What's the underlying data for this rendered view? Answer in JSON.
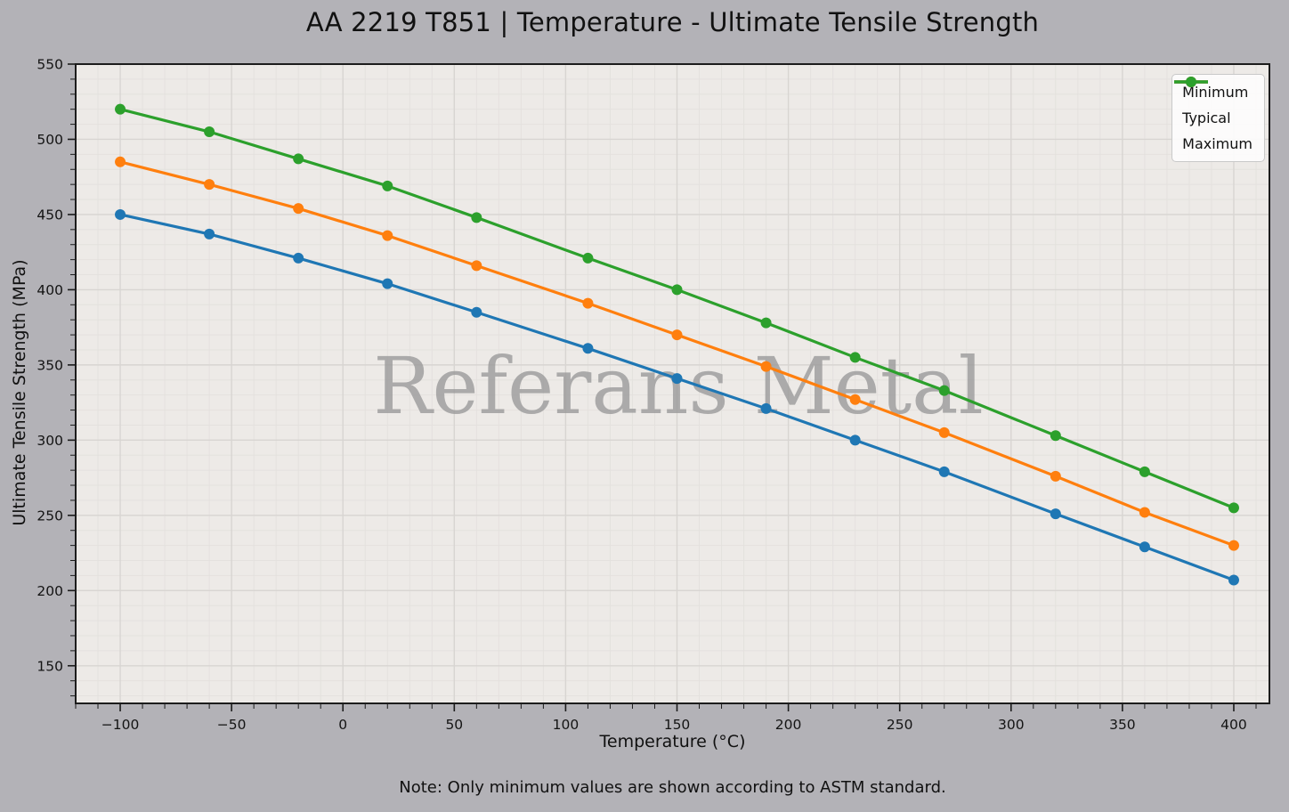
{
  "chart_data": {
    "type": "line",
    "title": "AA 2219 T851 | Temperature - Ultimate Tensile Strength",
    "xlabel": "Temperature (°C)",
    "ylabel": "Ultimate Tensile Strength (MPa)",
    "note": "Note: Only minimum values are shown according to ASTM standard.",
    "watermark": "Referans Metal",
    "x": [
      -100,
      -60,
      -20,
      20,
      60,
      110,
      150,
      190,
      230,
      270,
      320,
      360,
      400
    ],
    "series": [
      {
        "name": "Minimum",
        "color": "#1f77b4",
        "values": [
          450,
          437,
          421,
          404,
          385,
          361,
          341,
          321,
          300,
          279,
          251,
          229,
          207
        ]
      },
      {
        "name": "Typical",
        "color": "#ff7f0e",
        "values": [
          485,
          470,
          454,
          436,
          416,
          391,
          370,
          349,
          327,
          305,
          276,
          252,
          230
        ]
      },
      {
        "name": "Maximum",
        "color": "#2ca02c",
        "values": [
          520,
          505,
          487,
          469,
          448,
          421,
          400,
          378,
          355,
          333,
          303,
          279,
          255
        ]
      }
    ],
    "x_ticks": [
      -100,
      -50,
      0,
      50,
      100,
      150,
      200,
      250,
      300,
      350,
      400
    ],
    "y_ticks": [
      150,
      200,
      250,
      300,
      350,
      400,
      450,
      500,
      550
    ],
    "xlim": [
      -120,
      416
    ],
    "ylim": [
      125,
      550
    ],
    "grid": true,
    "minor_step_x": 10,
    "minor_step_y": 10,
    "legend_position": "upper right",
    "colors": {
      "figure_bg": "#b3b2b7",
      "plot_bg": "#edeae7",
      "grid_minor": "#e4e1de",
      "grid_major": "#d8d5d2",
      "spine": "#1c1c1c",
      "tick_label": "#141414",
      "watermark": "#9b9b9b"
    }
  }
}
